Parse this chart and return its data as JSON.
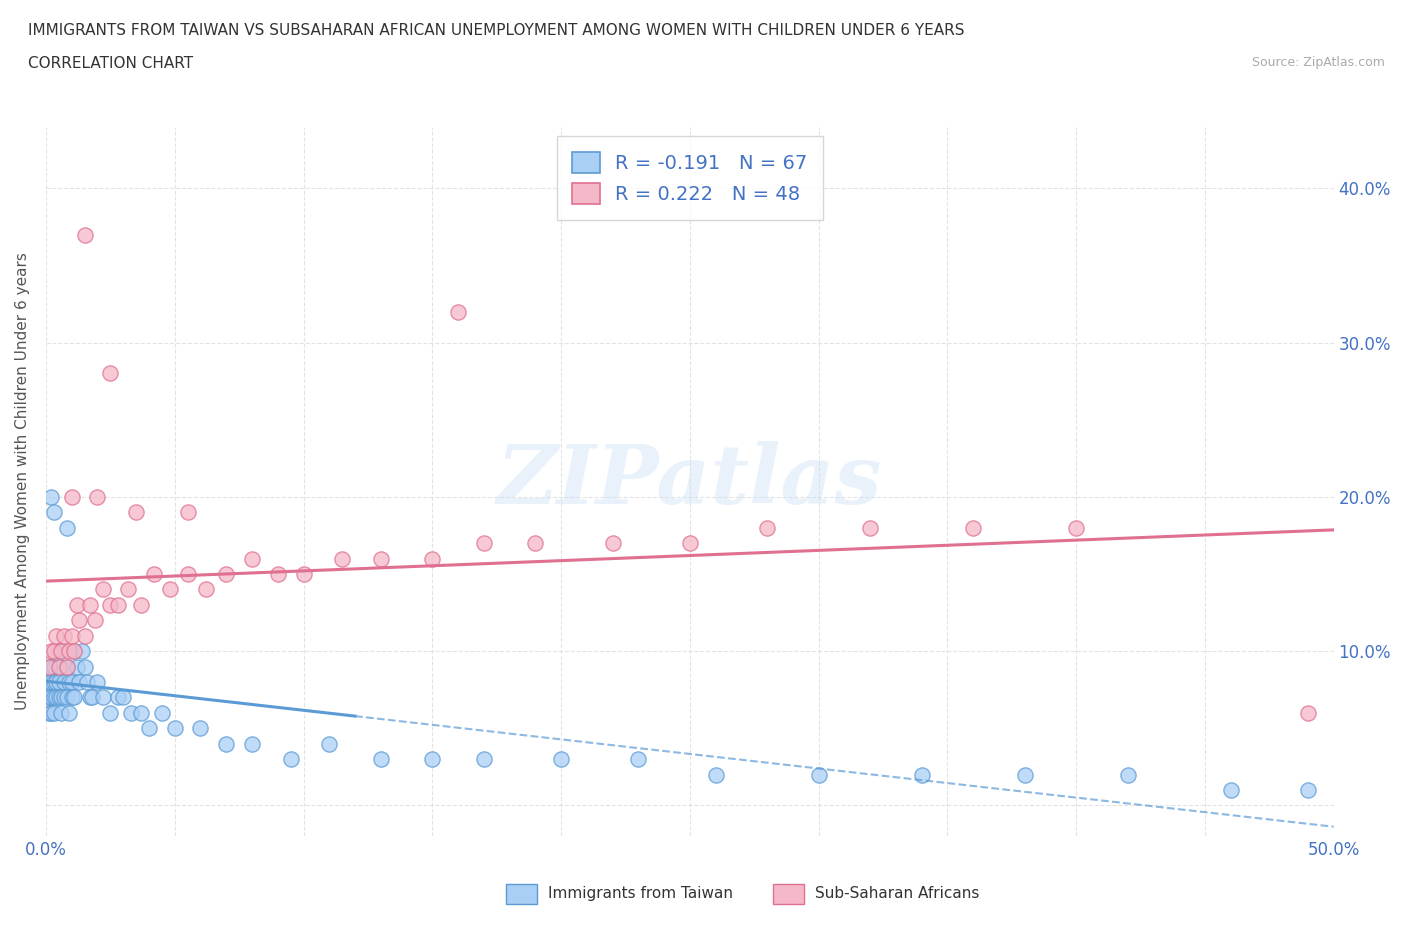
{
  "title_line1": "IMMIGRANTS FROM TAIWAN VS SUBSAHARAN AFRICAN UNEMPLOYMENT AMONG WOMEN WITH CHILDREN UNDER 6 YEARS",
  "title_line2": "CORRELATION CHART",
  "source_text": "Source: ZipAtlas.com",
  "ylabel": "Unemployment Among Women with Children Under 6 years",
  "xlim": [
    0.0,
    0.5
  ],
  "ylim": [
    -0.02,
    0.44
  ],
  "xticks": [
    0.0,
    0.05,
    0.1,
    0.15,
    0.2,
    0.25,
    0.3,
    0.35,
    0.4,
    0.45,
    0.5
  ],
  "xticklabels": [
    "0.0%",
    "",
    "",
    "",
    "",
    "",
    "",
    "",
    "",
    "",
    "50.0%"
  ],
  "yticks": [
    0.0,
    0.1,
    0.2,
    0.3,
    0.4
  ],
  "yticklabels": [
    "",
    "10.0%",
    "20.0%",
    "30.0%",
    "40.0%"
  ],
  "taiwan_color": "#aacff5",
  "taiwan_edge_color": "#5b9bd5",
  "subsaharan_color": "#f5b8c8",
  "subsaharan_edge_color": "#e07090",
  "taiwan_R": -0.191,
  "taiwan_N": 67,
  "subsaharan_R": 0.222,
  "subsaharan_N": 48,
  "taiwan_scatter_x": [
    0.001,
    0.001,
    0.001,
    0.001,
    0.002,
    0.002,
    0.002,
    0.002,
    0.003,
    0.003,
    0.003,
    0.003,
    0.004,
    0.004,
    0.005,
    0.005,
    0.005,
    0.006,
    0.006,
    0.006,
    0.007,
    0.007,
    0.008,
    0.008,
    0.009,
    0.009,
    0.01,
    0.01,
    0.011,
    0.011,
    0.012,
    0.013,
    0.014,
    0.015,
    0.016,
    0.017,
    0.018,
    0.02,
    0.022,
    0.025,
    0.028,
    0.03,
    0.033,
    0.037,
    0.04,
    0.045,
    0.05,
    0.06,
    0.07,
    0.08,
    0.095,
    0.11,
    0.13,
    0.15,
    0.17,
    0.2,
    0.23,
    0.26,
    0.3,
    0.34,
    0.38,
    0.42,
    0.46,
    0.49,
    0.002,
    0.003,
    0.008
  ],
  "taiwan_scatter_y": [
    0.07,
    0.09,
    0.06,
    0.08,
    0.07,
    0.09,
    0.08,
    0.06,
    0.07,
    0.09,
    0.06,
    0.08,
    0.07,
    0.08,
    0.08,
    0.1,
    0.07,
    0.07,
    0.09,
    0.06,
    0.08,
    0.07,
    0.09,
    0.07,
    0.08,
    0.06,
    0.08,
    0.07,
    0.1,
    0.07,
    0.09,
    0.08,
    0.1,
    0.09,
    0.08,
    0.07,
    0.07,
    0.08,
    0.07,
    0.06,
    0.07,
    0.07,
    0.06,
    0.06,
    0.05,
    0.06,
    0.05,
    0.05,
    0.04,
    0.04,
    0.03,
    0.04,
    0.03,
    0.03,
    0.03,
    0.03,
    0.03,
    0.02,
    0.02,
    0.02,
    0.02,
    0.02,
    0.01,
    0.01,
    0.2,
    0.19,
    0.18
  ],
  "subsaharan_scatter_x": [
    0.001,
    0.002,
    0.003,
    0.004,
    0.005,
    0.006,
    0.007,
    0.008,
    0.009,
    0.01,
    0.011,
    0.012,
    0.013,
    0.015,
    0.017,
    0.019,
    0.022,
    0.025,
    0.028,
    0.032,
    0.037,
    0.042,
    0.048,
    0.055,
    0.062,
    0.07,
    0.08,
    0.09,
    0.1,
    0.115,
    0.13,
    0.15,
    0.17,
    0.19,
    0.22,
    0.25,
    0.28,
    0.32,
    0.36,
    0.4,
    0.01,
    0.02,
    0.035,
    0.055,
    0.015,
    0.025,
    0.16,
    0.49
  ],
  "subsaharan_scatter_y": [
    0.09,
    0.1,
    0.1,
    0.11,
    0.09,
    0.1,
    0.11,
    0.09,
    0.1,
    0.11,
    0.1,
    0.13,
    0.12,
    0.11,
    0.13,
    0.12,
    0.14,
    0.13,
    0.13,
    0.14,
    0.13,
    0.15,
    0.14,
    0.15,
    0.14,
    0.15,
    0.16,
    0.15,
    0.15,
    0.16,
    0.16,
    0.16,
    0.17,
    0.17,
    0.17,
    0.17,
    0.18,
    0.18,
    0.18,
    0.18,
    0.2,
    0.2,
    0.19,
    0.19,
    0.37,
    0.28,
    0.32,
    0.06
  ],
  "background_color": "#ffffff",
  "grid_color": "#d8d8d8",
  "watermark_color": "#c8dff5",
  "watermark_alpha": 0.4
}
